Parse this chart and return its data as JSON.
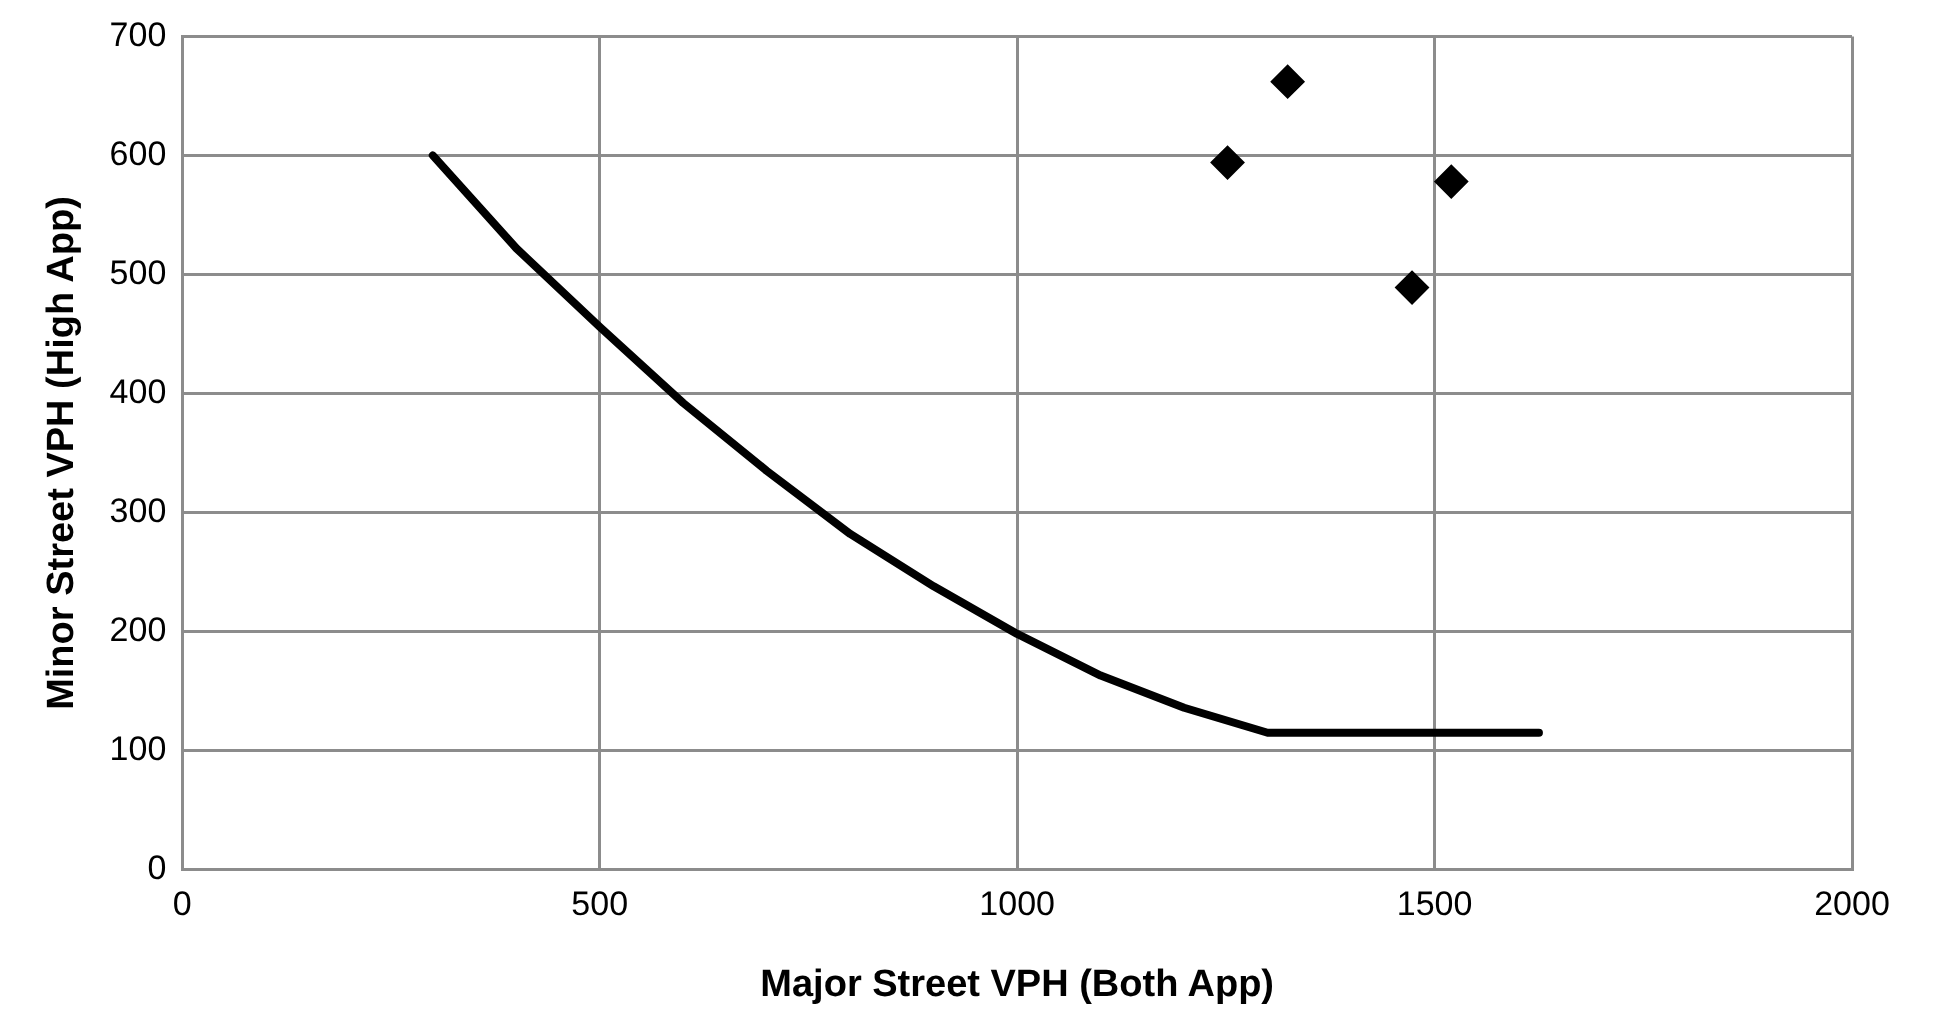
{
  "chart_data": {
    "type": "scatter",
    "xlabel": "Major Street VPH (Both App)",
    "ylabel": "Minor Street VPH (High App)",
    "xlim": [
      0,
      2000
    ],
    "xticks": [
      0,
      500,
      1000,
      1500,
      2000
    ],
    "ylim": [
      0,
      700
    ],
    "yticks": [
      0,
      100,
      200,
      300,
      400,
      500,
      600,
      700
    ],
    "grid": true,
    "legend": false,
    "series": [
      {
        "type": "line",
        "color": "#000000",
        "marker": "none",
        "x": [
          300,
          400,
          500,
          600,
          700,
          800,
          900,
          1000,
          1100,
          1200,
          1300,
          1625
        ],
        "values": [
          600,
          522,
          456,
          392,
          335,
          282,
          238,
          198,
          163,
          136,
          115,
          115
        ]
      },
      {
        "type": "scatter",
        "color": "#000000",
        "marker": "diamond",
        "x": [
          1252,
          1324,
          1473,
          1520
        ],
        "values": [
          594,
          662,
          489,
          578
        ]
      }
    ]
  }
}
